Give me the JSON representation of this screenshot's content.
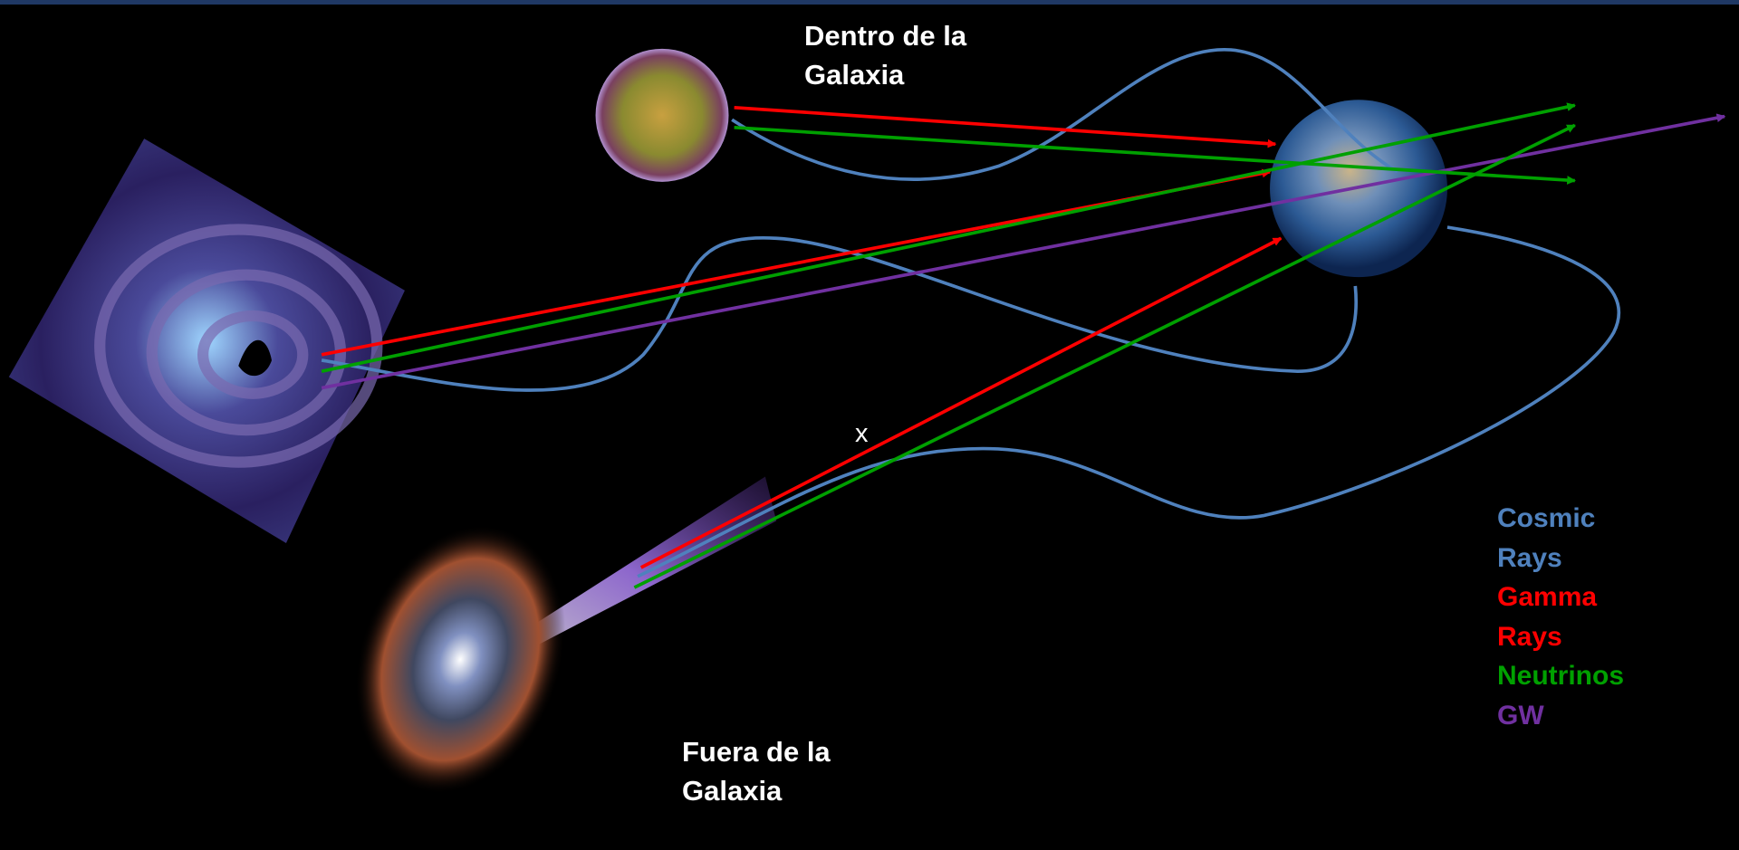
{
  "labels": {
    "inside": "Dentro de la Galaxia",
    "outside": "Fuera de la Galaxia",
    "blocked_marker": "x"
  },
  "legend": [
    {
      "name": "Cosmic Rays",
      "color": "#4f81bd"
    },
    {
      "name": "Gamma Rays",
      "color": "#ff0000"
    },
    {
      "name": "Neutrinos",
      "color": "#00a000"
    },
    {
      "name": "GW",
      "color": "#7030a0"
    }
  ]
}
